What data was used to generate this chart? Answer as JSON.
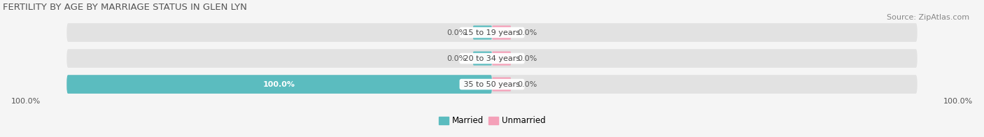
{
  "title": "FERTILITY BY AGE BY MARRIAGE STATUS IN GLEN LYN",
  "source": "Source: ZipAtlas.com",
  "categories": [
    "15 to 19 years",
    "20 to 34 years",
    "35 to 50 years"
  ],
  "married_values": [
    0.0,
    0.0,
    100.0
  ],
  "unmarried_values": [
    0.0,
    0.0,
    0.0
  ],
  "married_color": "#5bbcbf",
  "unmarried_color": "#f4a0b8",
  "bar_bg_color": "#e2e2e2",
  "title_fontsize": 9.5,
  "source_fontsize": 8,
  "label_fontsize": 8,
  "tick_fontsize": 8,
  "legend_fontsize": 8.5,
  "bg_color": "#f5f5f5",
  "value_color": "#555555",
  "label_color": "#444444"
}
